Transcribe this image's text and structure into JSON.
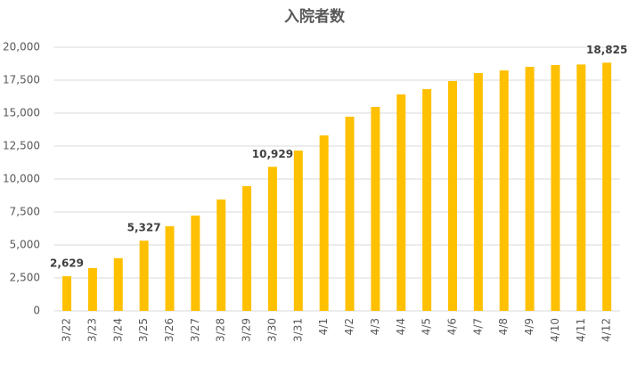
{
  "chart_data": {
    "type": "bar",
    "title": "入院者数",
    "categories": [
      "3/22",
      "3/23",
      "3/24",
      "3/25",
      "3/26",
      "3/27",
      "3/28",
      "3/29",
      "3/30",
      "3/31",
      "4/1",
      "4/2",
      "4/3",
      "4/4",
      "4/5",
      "4/6",
      "4/7",
      "4/8",
      "4/9",
      "4/10",
      "4/11",
      "4/12"
    ],
    "values": [
      2629,
      3250,
      4000,
      5327,
      6420,
      7230,
      8450,
      9460,
      10929,
      12160,
      13310,
      14730,
      15470,
      16420,
      16820,
      17430,
      18040,
      18240,
      18510,
      18650,
      18690,
      18825
    ],
    "value_labels": [
      "2,629",
      null,
      null,
      "5,327",
      null,
      null,
      null,
      null,
      "10,929",
      null,
      null,
      null,
      null,
      null,
      null,
      null,
      null,
      null,
      null,
      null,
      null,
      "18,825"
    ],
    "color": "#ffc000",
    "ylim": [
      0,
      20000
    ],
    "yticks": [
      0,
      {
        "value": 2500,
        "label": "2,500"
      },
      {
        "value": 5000,
        "label": "5,000"
      },
      {
        "value": 7500,
        "label": "7,500"
      },
      {
        "value": 10000,
        "label": "10,000"
      },
      {
        "value": 12500,
        "label": "12,500"
      },
      {
        "value": 15000,
        "label": "15,000"
      },
      {
        "value": 17500,
        "label": "17,500"
      },
      {
        "value": 20000,
        "label": "20,000"
      }
    ],
    "grid": true
  }
}
